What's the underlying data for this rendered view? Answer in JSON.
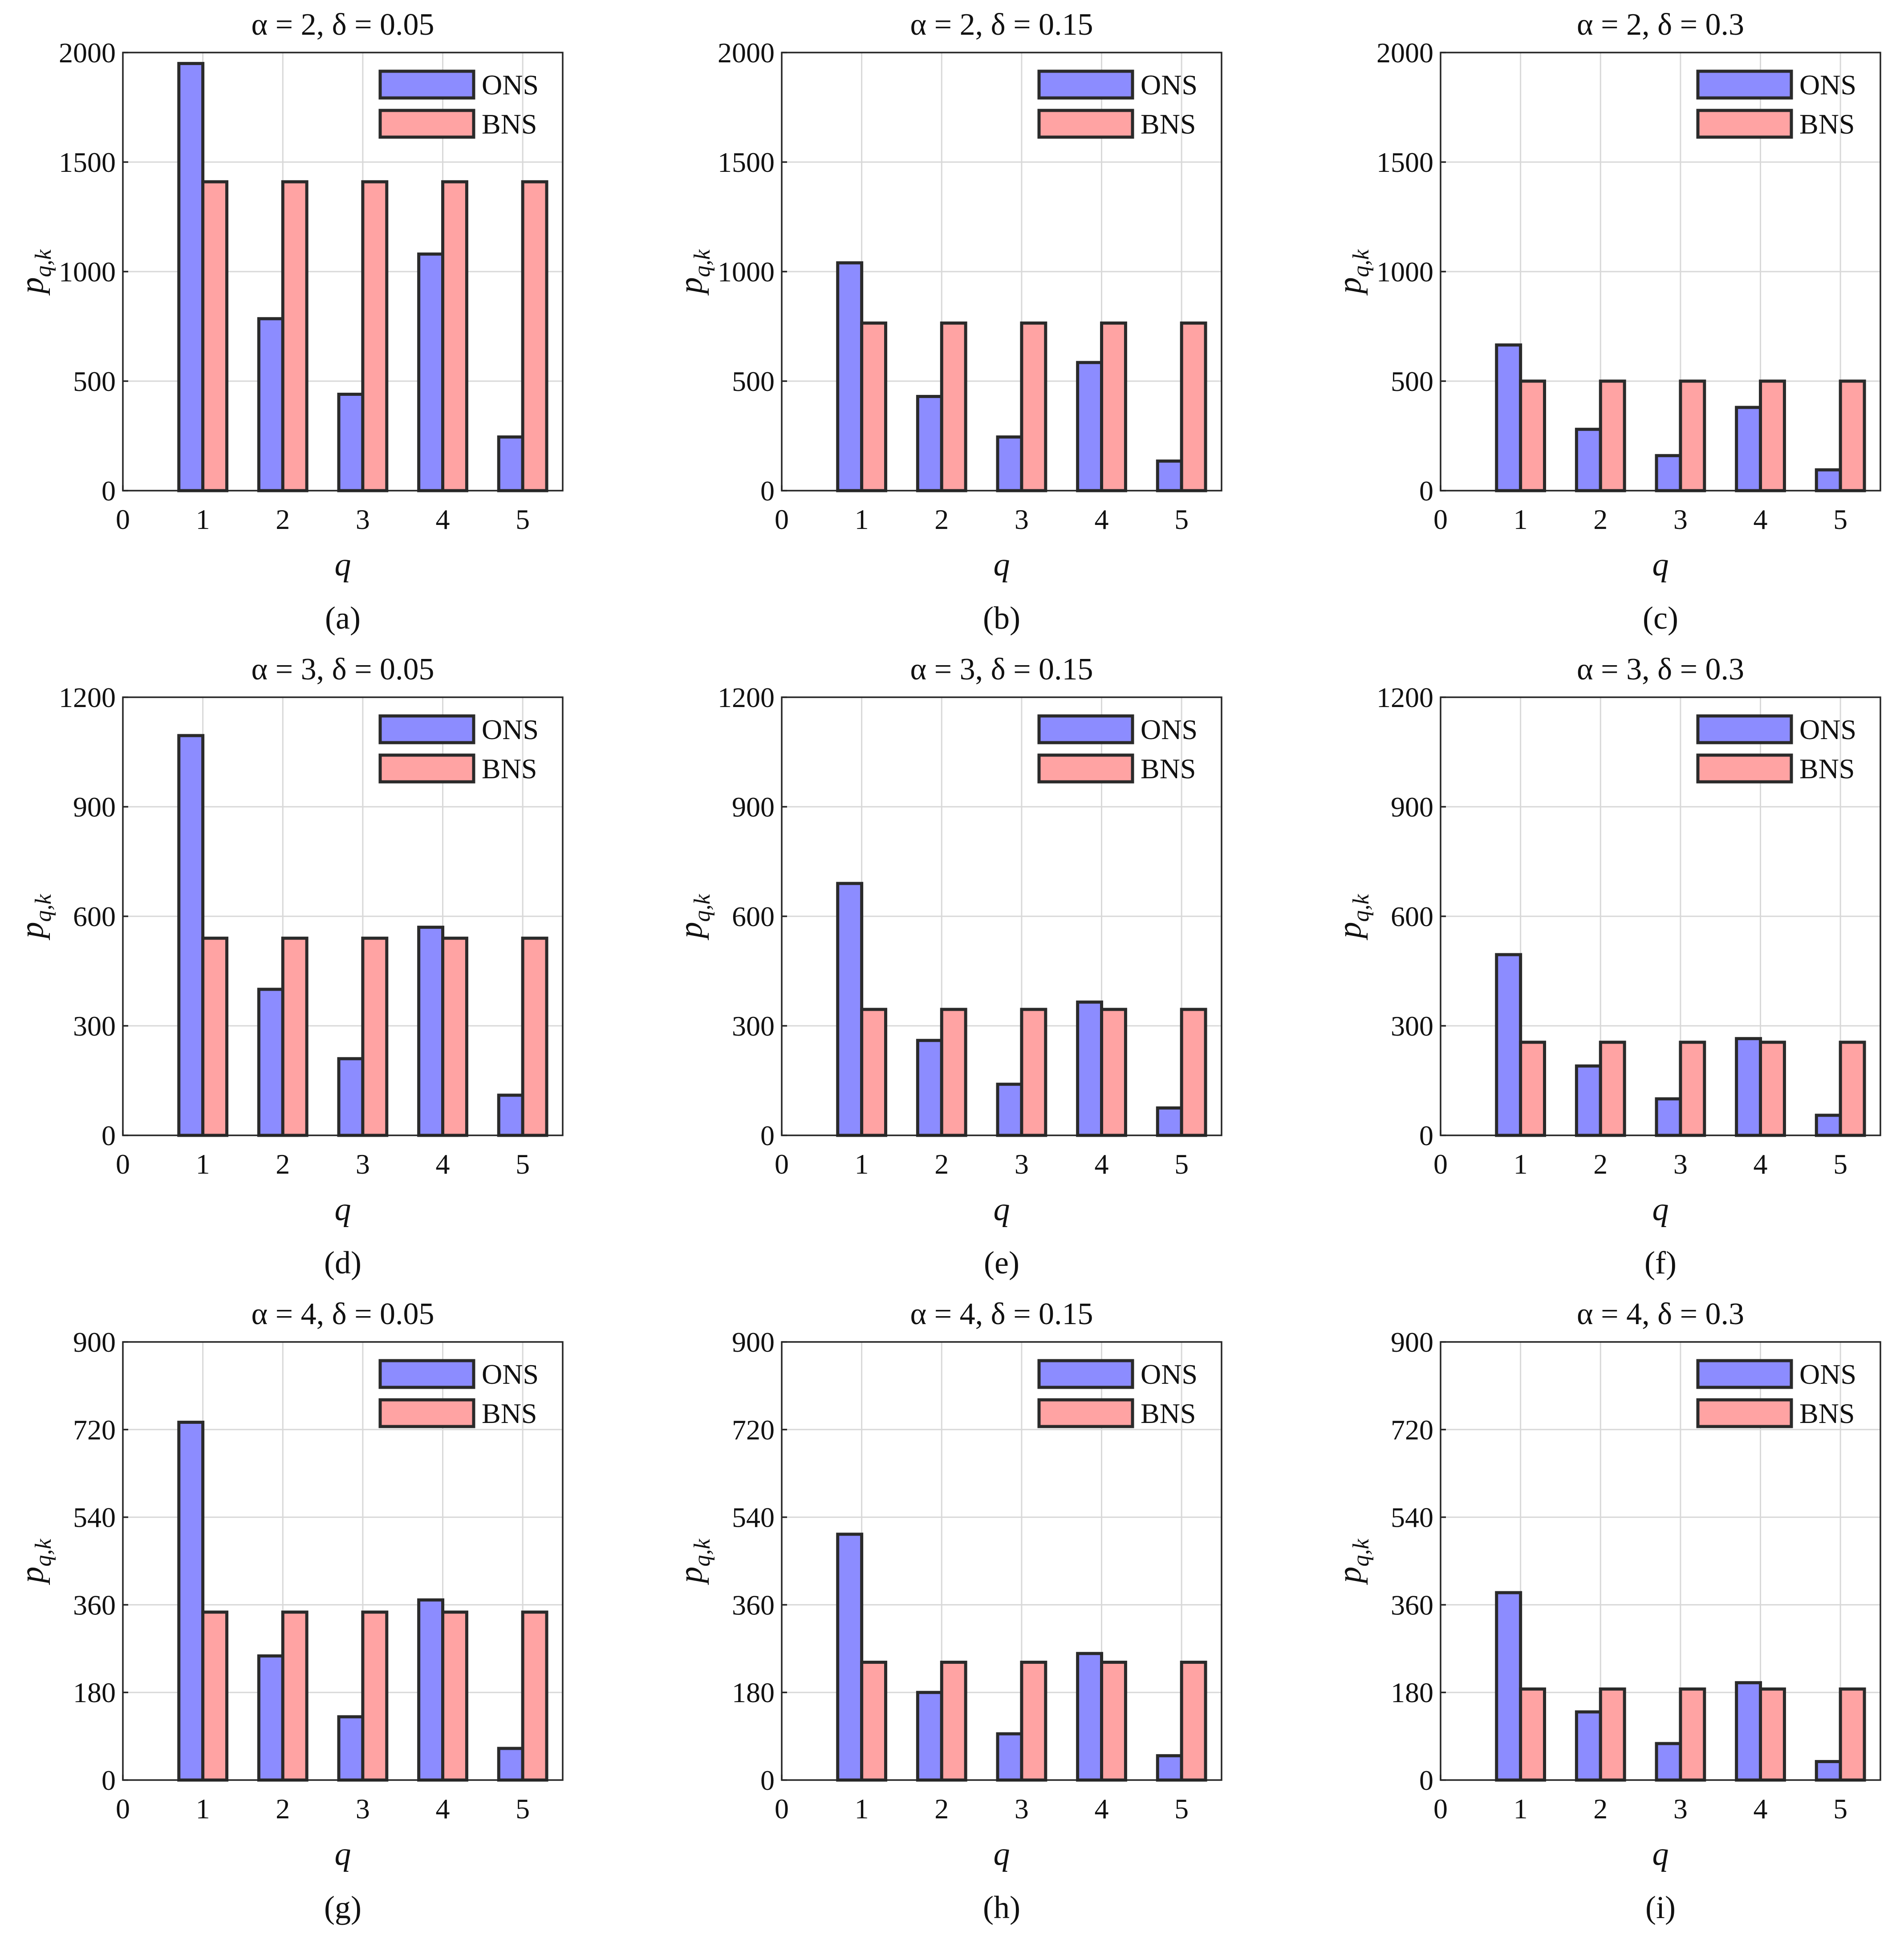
{
  "legend": {
    "series": [
      "ONS",
      "BNS"
    ]
  },
  "colors": {
    "ONS": "#8c8cff",
    "BNS": "#ffa3a3",
    "edge": "#2a2a2a",
    "grid": "#d8d8d8"
  },
  "chart_data": [
    {
      "type": "bar",
      "title": "α = 2, δ = 0.05",
      "subcaption": "(a)",
      "xlabel": "q",
      "ylabel": "p",
      "ylabel_sub": "q,k",
      "categories": [
        1,
        2,
        3,
        4,
        5
      ],
      "xlim": [
        0,
        5.5
      ],
      "xticks": [
        "0",
        "1",
        "2",
        "3",
        "4",
        "5"
      ],
      "ylim": [
        0,
        2000
      ],
      "yticks": [
        "0",
        "500",
        "1000",
        "1500",
        "2000"
      ],
      "grid": true,
      "legend_position": "top-right",
      "series": [
        {
          "name": "ONS",
          "values": [
            1950,
            785,
            440,
            1080,
            245
          ]
        },
        {
          "name": "BNS",
          "values": [
            1410,
            1410,
            1410,
            1410,
            1410
          ]
        }
      ]
    },
    {
      "type": "bar",
      "title": "α = 2, δ = 0.15",
      "subcaption": "(b)",
      "xlabel": "q",
      "ylabel": "p",
      "ylabel_sub": "q,k",
      "categories": [
        1,
        2,
        3,
        4,
        5
      ],
      "xlim": [
        0,
        5.5
      ],
      "xticks": [
        "0",
        "1",
        "2",
        "3",
        "4",
        "5"
      ],
      "ylim": [
        0,
        2000
      ],
      "yticks": [
        "0",
        "500",
        "1000",
        "1500",
        "2000"
      ],
      "grid": true,
      "legend_position": "top-right",
      "series": [
        {
          "name": "ONS",
          "values": [
            1040,
            430,
            245,
            585,
            135
          ]
        },
        {
          "name": "BNS",
          "values": [
            765,
            765,
            765,
            765,
            765
          ]
        }
      ]
    },
    {
      "type": "bar",
      "title": "α = 2, δ = 0.3",
      "subcaption": "(c)",
      "xlabel": "q",
      "ylabel": "p",
      "ylabel_sub": "q,k",
      "categories": [
        1,
        2,
        3,
        4,
        5
      ],
      "xlim": [
        0,
        5.5
      ],
      "xticks": [
        "0",
        "1",
        "2",
        "3",
        "4",
        "5"
      ],
      "ylim": [
        0,
        2000
      ],
      "yticks": [
        "0",
        "500",
        "1000",
        "1500",
        "2000"
      ],
      "grid": true,
      "legend_position": "top-right",
      "series": [
        {
          "name": "ONS",
          "values": [
            665,
            280,
            160,
            380,
            95
          ]
        },
        {
          "name": "BNS",
          "values": [
            500,
            500,
            500,
            500,
            500
          ]
        }
      ]
    },
    {
      "type": "bar",
      "title": "α = 3, δ = 0.05",
      "subcaption": "(d)",
      "xlabel": "q",
      "ylabel": "p",
      "ylabel_sub": "q,k",
      "categories": [
        1,
        2,
        3,
        4,
        5
      ],
      "xlim": [
        0,
        5.5
      ],
      "xticks": [
        "0",
        "1",
        "2",
        "3",
        "4",
        "5"
      ],
      "ylim": [
        0,
        1200
      ],
      "yticks": [
        "0",
        "300",
        "600",
        "900",
        "1200"
      ],
      "grid": true,
      "legend_position": "top-right",
      "series": [
        {
          "name": "ONS",
          "values": [
            1095,
            400,
            210,
            570,
            110
          ]
        },
        {
          "name": "BNS",
          "values": [
            540,
            540,
            540,
            540,
            540
          ]
        }
      ]
    },
    {
      "type": "bar",
      "title": "α = 3, δ = 0.15",
      "subcaption": "(e)",
      "xlabel": "q",
      "ylabel": "p",
      "ylabel_sub": "q,k",
      "categories": [
        1,
        2,
        3,
        4,
        5
      ],
      "xlim": [
        0,
        5.5
      ],
      "xticks": [
        "0",
        "1",
        "2",
        "3",
        "4",
        "5"
      ],
      "ylim": [
        0,
        1200
      ],
      "yticks": [
        "0",
        "300",
        "600",
        "900",
        "1200"
      ],
      "grid": true,
      "legend_position": "top-right",
      "series": [
        {
          "name": "ONS",
          "values": [
            690,
            260,
            140,
            365,
            75
          ]
        },
        {
          "name": "BNS",
          "values": [
            345,
            345,
            345,
            345,
            345
          ]
        }
      ]
    },
    {
      "type": "bar",
      "title": "α = 3, δ = 0.3",
      "subcaption": "(f)",
      "xlabel": "q",
      "ylabel": "p",
      "ylabel_sub": "q,k",
      "categories": [
        1,
        2,
        3,
        4,
        5
      ],
      "xlim": [
        0,
        5.5
      ],
      "xticks": [
        "0",
        "1",
        "2",
        "3",
        "4",
        "5"
      ],
      "ylim": [
        0,
        1200
      ],
      "yticks": [
        "0",
        "300",
        "600",
        "900",
        "1200"
      ],
      "grid": true,
      "legend_position": "top-right",
      "series": [
        {
          "name": "ONS",
          "values": [
            495,
            190,
            100,
            265,
            55
          ]
        },
        {
          "name": "BNS",
          "values": [
            255,
            255,
            255,
            255,
            255
          ]
        }
      ]
    },
    {
      "type": "bar",
      "title": "α = 4, δ = 0.05",
      "subcaption": "(g)",
      "xlabel": "q",
      "ylabel": "p",
      "ylabel_sub": "q,k",
      "categories": [
        1,
        2,
        3,
        4,
        5
      ],
      "xlim": [
        0,
        5.5
      ],
      "xticks": [
        "0",
        "1",
        "2",
        "3",
        "4",
        "5"
      ],
      "ylim": [
        0,
        900
      ],
      "yticks": [
        "0",
        "180",
        "360",
        "540",
        "720",
        "900"
      ],
      "grid": true,
      "legend_position": "top-right",
      "series": [
        {
          "name": "ONS",
          "values": [
            735,
            255,
            130,
            370,
            65
          ]
        },
        {
          "name": "BNS",
          "values": [
            345,
            345,
            345,
            345,
            345
          ]
        }
      ]
    },
    {
      "type": "bar",
      "title": "α = 4, δ = 0.15",
      "subcaption": "(h)",
      "xlabel": "q",
      "ylabel": "p",
      "ylabel_sub": "q,k",
      "categories": [
        1,
        2,
        3,
        4,
        5
      ],
      "xlim": [
        0,
        5.5
      ],
      "xticks": [
        "0",
        "1",
        "2",
        "3",
        "4",
        "5"
      ],
      "ylim": [
        0,
        900
      ],
      "yticks": [
        "0",
        "180",
        "360",
        "540",
        "720",
        "900"
      ],
      "grid": true,
      "legend_position": "top-right",
      "series": [
        {
          "name": "ONS",
          "values": [
            505,
            180,
            95,
            260,
            50
          ]
        },
        {
          "name": "BNS",
          "values": [
            242,
            242,
            242,
            242,
            242
          ]
        }
      ]
    },
    {
      "type": "bar",
      "title": "α = 4, δ = 0.3",
      "subcaption": "(i)",
      "xlabel": "q",
      "ylabel": "p",
      "ylabel_sub": "q,k",
      "categories": [
        1,
        2,
        3,
        4,
        5
      ],
      "xlim": [
        0,
        5.5
      ],
      "xticks": [
        "0",
        "1",
        "2",
        "3",
        "4",
        "5"
      ],
      "ylim": [
        0,
        900
      ],
      "yticks": [
        "0",
        "180",
        "360",
        "540",
        "720",
        "900"
      ],
      "grid": true,
      "legend_position": "top-right",
      "series": [
        {
          "name": "ONS",
          "values": [
            385,
            140,
            75,
            200,
            38
          ]
        },
        {
          "name": "BNS",
          "values": [
            187,
            187,
            187,
            187,
            187
          ]
        }
      ]
    }
  ]
}
